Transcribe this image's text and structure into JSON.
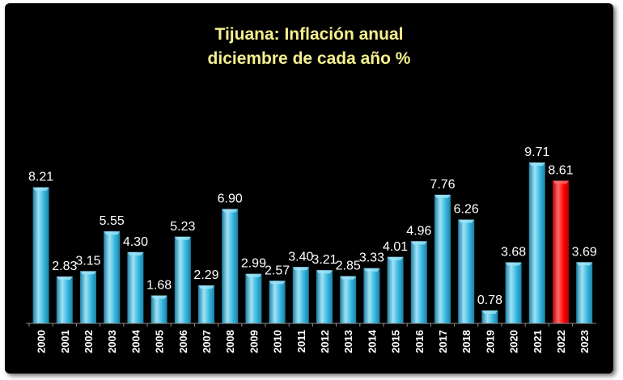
{
  "chart_data": {
    "type": "bar",
    "title": "Tijuana: Inflación anual",
    "subtitle": "diciembre de cada año %",
    "xlabel": "",
    "ylabel": "",
    "ylim": [
      0,
      10
    ],
    "grid": false,
    "legend": "none",
    "categories": [
      "2000",
      "2001",
      "2002",
      "2003",
      "2004",
      "2005",
      "2006",
      "2007",
      "2008",
      "2009",
      "2010",
      "2011",
      "2012",
      "2013",
      "2014",
      "2015",
      "2016",
      "2017",
      "2018",
      "2019",
      "2020",
      "2021",
      "2022",
      "2023"
    ],
    "values": [
      8.21,
      2.83,
      3.15,
      5.55,
      4.3,
      1.68,
      5.23,
      2.29,
      6.9,
      2.99,
      2.57,
      3.4,
      3.21,
      2.85,
      3.33,
      4.01,
      4.96,
      7.76,
      6.26,
      0.78,
      3.68,
      9.71,
      8.61,
      3.69
    ],
    "data_labels": [
      "8.21",
      "2.83",
      "3.15",
      "5.55",
      "4.30",
      "1.68",
      "5.23",
      "2.29",
      "6.90",
      "2.99",
      "2.57",
      "3.40",
      "3.21",
      "2.85",
      "3.33",
      "4.01",
      "4.96",
      "7.76",
      "6.26",
      "0.78",
      "3.68",
      "9.71",
      "8.61",
      "3.69"
    ],
    "highlight_category": "2022",
    "colors": {
      "bar": "#33b6de",
      "bar_light": "#9fe3f6",
      "bar_dark": "#1d7fa4",
      "highlight": "#ff0000",
      "highlight_light": "#ff6a6a",
      "highlight_dark": "#b80000",
      "background": "#000000",
      "title": "#f6f08e",
      "text": "#ffffff",
      "axis": "#8c8c8c"
    }
  }
}
